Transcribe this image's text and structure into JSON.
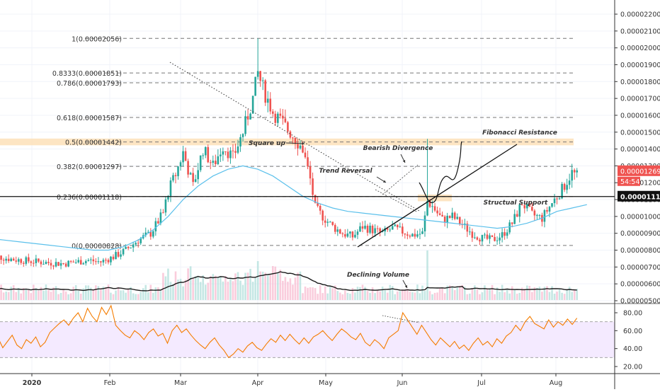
{
  "chart_data": {
    "type": "candlestick",
    "timeframe": "daily",
    "x_labels": [
      "2020",
      "Feb",
      "Mar",
      "Apr",
      "May",
      "Jun",
      "Jul",
      "Aug"
    ],
    "price_axis": {
      "ticks": [
        "0.00002200",
        "0.00002100",
        "0.00002000",
        "0.00001900",
        "0.00001800",
        "0.00001700",
        "0.00001600",
        "0.00001500",
        "0.00001400",
        "0.00001300",
        "0.00001200",
        "0.00001100",
        "0.00001000",
        "0.00000900",
        "0.00000800",
        "0.00000700",
        "0.00000600",
        "0.00000500"
      ],
      "range": [
        4.8e-06,
        2.22e-05
      ],
      "current_price_label": "0.00001269",
      "countdown_label": "54:54",
      "support_price_label": "0.00001118"
    },
    "fibonacci_levels": [
      {
        "label": "1(0.00002056)",
        "value": 2.056e-05
      },
      {
        "label": "0.8333(0.00001851)",
        "value": 1.851e-05
      },
      {
        "label": "0.786(0.00001793)",
        "value": 1.793e-05
      },
      {
        "label": "0.618(0.00001587)",
        "value": 1.587e-05
      },
      {
        "label": "0.5(0.00001442)",
        "value": 1.442e-05
      },
      {
        "label": "0.382(0.00001297)",
        "value": 1.297e-05
      },
      {
        "label": "0.236(0.00001118)",
        "value": 1.118e-05
      },
      {
        "label": "0(0.00000828)",
        "value": 8.28e-06
      }
    ],
    "annotations": [
      "Square up",
      "Bearish Divergence",
      "Fibonacci Resistance",
      "Trend Reversal",
      "Structual Support",
      "Declining Volume"
    ],
    "rsi": {
      "ticks": [
        "80.00",
        "60.00",
        "40.00",
        "20.00"
      ],
      "range": [
        15,
        88
      ],
      "band": [
        30,
        70
      ],
      "values": [
        38,
        45,
        52,
        41,
        48,
        55,
        44,
        40,
        50,
        46,
        53,
        42,
        47,
        58,
        63,
        68,
        72,
        66,
        74,
        80,
        70,
        85,
        76,
        70,
        86,
        78,
        88,
        66,
        60,
        55,
        52,
        60,
        56,
        50,
        58,
        62,
        54,
        57,
        46,
        60,
        66,
        58,
        62,
        55,
        49,
        44,
        40,
        47,
        52,
        44,
        38,
        30,
        34,
        40,
        36,
        43,
        47,
        41,
        38,
        45,
        51,
        47,
        55,
        49,
        56,
        50,
        45,
        52,
        46,
        53,
        56,
        60,
        54,
        49,
        56,
        62,
        58,
        53,
        50,
        57,
        47,
        43,
        50,
        46,
        40,
        52,
        56,
        60,
        80,
        72,
        64,
        56,
        66,
        58,
        50,
        44,
        52,
        47,
        42,
        48,
        40,
        44,
        38,
        46,
        52,
        44,
        48,
        42,
        51,
        46,
        54,
        58,
        66,
        60,
        70,
        76,
        68,
        65,
        62,
        72,
        64,
        70,
        66,
        73,
        67,
        74
      ]
    },
    "moving_average_values": [
      8.7e-06,
      8.6e-06,
      8.5e-06,
      8.4e-06,
      8.3e-06,
      8.2e-06,
      8.1e-06,
      8e-06,
      8e-06,
      8.2e-06,
      8.6e-06,
      9.2e-06,
      1e-05,
      1.1e-05,
      1.18e-05,
      1.24e-05,
      1.28e-05,
      1.3e-05,
      1.28e-05,
      1.24e-05,
      1.18e-05,
      1.12e-05,
      1.08e-05,
      1.05e-05,
      1.03e-05,
      1.02e-05,
      1.01e-05,
      1e-05,
      9.9e-06,
      9.8e-06,
      9.7e-06,
      9.6e-06,
      9.5e-06,
      9.4e-06,
      9.3e-06,
      9.4e-06,
      9.6e-06,
      9.9e-06,
      1.03e-05,
      1.05e-05,
      1.07e-05
    ]
  }
}
